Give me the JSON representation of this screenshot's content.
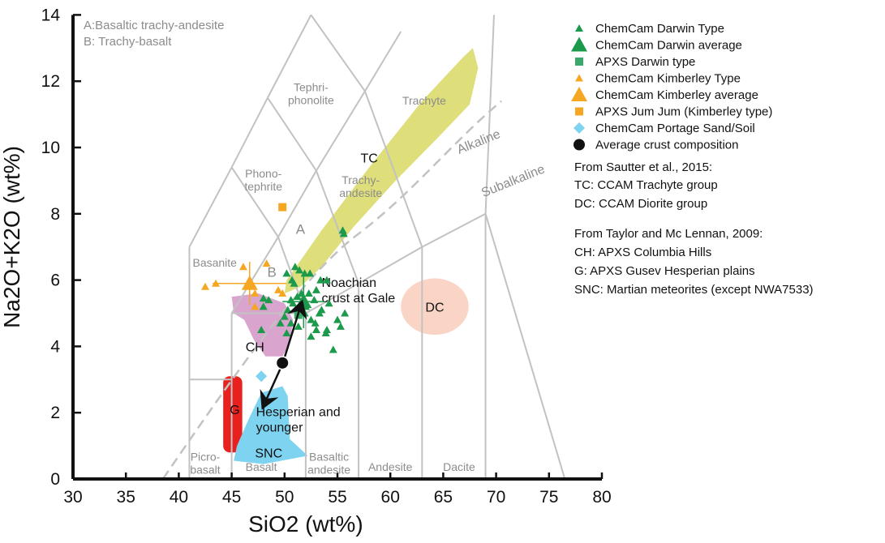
{
  "chart_data": {
    "type": "scatter",
    "xlabel": "SiO2 (wt%)",
    "ylabel": "Na2O+K2O (wt%)",
    "xlim": [
      30,
      80
    ],
    "ylim": [
      0,
      14
    ],
    "x_ticks": [
      "30",
      "35",
      "40",
      "45",
      "50",
      "55",
      "60",
      "65",
      "70",
      "75",
      "80"
    ],
    "y_ticks": [
      "0",
      "2",
      "4",
      "6",
      "8",
      "10",
      "12",
      "14"
    ],
    "grid": false,
    "legend_position": "right",
    "notes": [
      "A:Basaltic trachy-andesite",
      "B: Trachy-basalt"
    ],
    "tas_fields": [
      {
        "label": "Picro-\nbasalt",
        "x": 42.5,
        "y": 0.55
      },
      {
        "label": "Basalt",
        "x": 47.8,
        "y": 0.25
      },
      {
        "label": "Basaltic\nandesite",
        "x": 54.2,
        "y": 0.55
      },
      {
        "label": "Andesite",
        "x": 60.0,
        "y": 0.25
      },
      {
        "label": "Dacite",
        "x": 66.5,
        "y": 0.25
      },
      {
        "label": "Basanite",
        "x": 43.4,
        "y": 6.4
      },
      {
        "label": "Phono-\ntephrite",
        "x": 48.0,
        "y": 9.1
      },
      {
        "label": "Tephri-\nphonolite",
        "x": 52.5,
        "y": 11.7
      },
      {
        "label": "Trachy-\nandesite",
        "x": 57.2,
        "y": 8.9
      },
      {
        "label": "Trachyte",
        "x": 63.2,
        "y": 11.3
      },
      {
        "label": "A",
        "x": 51.5,
        "y": 7.4
      },
      {
        "label": "B",
        "x": 48.8,
        "y": 6.1
      }
    ],
    "alkaline_labels": [
      "Alkaline",
      "Subalkaline"
    ],
    "regions": [
      {
        "id": "TC",
        "label": "TC",
        "color": "#dede7a",
        "x": 58.0,
        "y": 9.7
      },
      {
        "id": "DC",
        "label": "DC",
        "color": "#fad4c4",
        "x": 64.2,
        "y": 5.2
      },
      {
        "id": "CH",
        "label": "CH",
        "color": "#d9a5cf",
        "x": 47.2,
        "y": 4.0
      },
      {
        "id": "G",
        "label": "G",
        "color": "#e8201e",
        "x": 45.3,
        "y": 2.1
      },
      {
        "id": "SNC",
        "label": "SNC",
        "color": "#7dd3f0",
        "x": 48.5,
        "y": 0.8
      }
    ],
    "annotations": [
      {
        "text": "Noachian\ncrust at Gale",
        "x": 53.5,
        "y": 5.8
      },
      {
        "text": "Hesperian and\nyounger",
        "x": 47.3,
        "y": 1.9
      }
    ],
    "series": [
      {
        "name": "ChemCam Darwin Type",
        "color": "#1a9a4a",
        "marker": "triangle-small",
        "points": [
          [
            50.2,
            6.2
          ],
          [
            50.7,
            6.0
          ],
          [
            51.0,
            6.4
          ],
          [
            51.4,
            6.3
          ],
          [
            51.9,
            6.2
          ],
          [
            52.4,
            6.2
          ],
          [
            53.0,
            5.7
          ],
          [
            53.4,
            6.0
          ],
          [
            52.8,
            5.4
          ],
          [
            50.6,
            5.4
          ],
          [
            50.9,
            5.9
          ],
          [
            52.0,
            5.2
          ],
          [
            53.5,
            5.1
          ],
          [
            54.2,
            5.3
          ],
          [
            54.0,
            6.0
          ],
          [
            55.7,
            5.0
          ],
          [
            55.5,
            7.5
          ],
          [
            55.6,
            7.4
          ],
          [
            50.3,
            5.1
          ],
          [
            50.0,
            4.9
          ],
          [
            49.6,
            4.7
          ],
          [
            50.2,
            4.4
          ],
          [
            50.6,
            4.7
          ],
          [
            51.3,
            4.6
          ],
          [
            52.5,
            4.8
          ],
          [
            53.0,
            4.5
          ],
          [
            53.9,
            4.4
          ],
          [
            54.0,
            4.5
          ],
          [
            55.3,
            4.6
          ],
          [
            54.6,
            3.9
          ],
          [
            52.5,
            4.3
          ],
          [
            51.2,
            5.5
          ],
          [
            51.6,
            5.6
          ],
          [
            52.3,
            5.6
          ],
          [
            53.3,
            5.0
          ],
          [
            48.0,
            5.2
          ],
          [
            48.0,
            5.45
          ],
          [
            48.5,
            5.4
          ],
          [
            47.8,
            4.5
          ],
          [
            52.9,
            4.7
          ],
          [
            55.0,
            4.8
          ],
          [
            50.8,
            5.3
          ],
          [
            51.9,
            5.0
          ]
        ]
      },
      {
        "name": "ChemCam Darwin average",
        "color": "#1a9a4a",
        "marker": "triangle-large",
        "points": [
          [
            51.8,
            5.35
          ]
        ],
        "err_x": 2.0,
        "err_y": 0.8
      },
      {
        "name": "APXS Darwin type",
        "color": "#3aa86a",
        "marker": "square",
        "points": [
          [
            51.3,
            4.95
          ]
        ]
      },
      {
        "name": "ChemCam Kimberley Type",
        "color": "#f5a623",
        "marker": "triangle-small",
        "points": [
          [
            42.5,
            5.8
          ],
          [
            43.5,
            5.9
          ],
          [
            46.1,
            6.4
          ],
          [
            47.2,
            5.6
          ],
          [
            48.3,
            6.5
          ],
          [
            49.4,
            5.7
          ],
          [
            49.8,
            5.6
          ],
          [
            47.2,
            5.2
          ]
        ]
      },
      {
        "name": "ChemCam Kimberley average",
        "color": "#f5a623",
        "marker": "triangle-large",
        "points": [
          [
            46.7,
            5.9
          ]
        ],
        "err_x": 3.5,
        "err_y": 0.65
      },
      {
        "name": "APXS Jum Jum (Kimberley type)",
        "color": "#f5a623",
        "marker": "square",
        "points": [
          [
            49.8,
            8.2
          ]
        ]
      },
      {
        "name": "ChemCam Portage Sand/Soil",
        "color": "#7dd3f0",
        "marker": "diamond",
        "points": [
          [
            47.8,
            3.1
          ]
        ]
      },
      {
        "name": "Average crust composition",
        "color": "#111111",
        "marker": "circle",
        "points": [
          [
            49.8,
            3.5
          ]
        ]
      }
    ],
    "legend_notes": [
      "From Sautter et al., 2015:",
      "TC: CCAM Trachyte group",
      "DC: CCAM Diorite group",
      "From Taylor and Mc Lennan, 2009:",
      "CH: APXS Columbia Hills",
      "G: APXS Gusev Hesperian plains",
      "SNC: Martian meteorites (except NWA7533)"
    ]
  }
}
